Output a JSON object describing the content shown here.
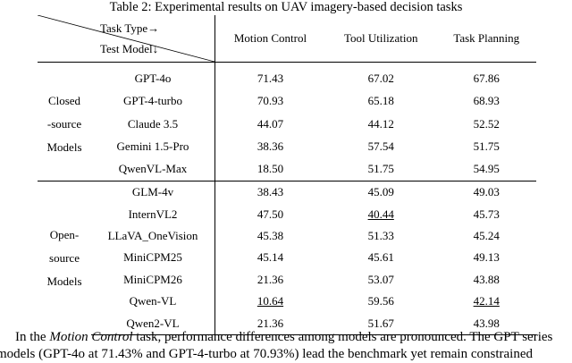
{
  "caption": "Table 2: Experimental results on UAV imagery-based decision tasks",
  "header": {
    "task_type": "Task Type→",
    "test_model": "Test Model↓",
    "columns": [
      "Motion Control",
      "Tool Utilization",
      "Task Planning"
    ]
  },
  "groups": [
    {
      "label_lines": [
        "Closed",
        "-source",
        "Models"
      ],
      "rows": [
        {
          "model": "GPT-4o",
          "motion": "71.43",
          "tool": "67.02",
          "plan": "67.86"
        },
        {
          "model": "GPT-4-turbo",
          "motion": "70.93",
          "tool": "65.18",
          "plan": "68.93"
        },
        {
          "model": "Claude 3.5",
          "motion": "44.07",
          "tool": "44.12",
          "plan": "52.52"
        },
        {
          "model": "Gemini 1.5-Pro",
          "motion": "38.36",
          "tool": "57.54",
          "plan": "51.75"
        },
        {
          "model": "QwenVL-Max",
          "motion": "18.50",
          "tool": "51.75",
          "plan": "54.95"
        }
      ]
    },
    {
      "label_lines": [
        "Open-",
        "source",
        "Models"
      ],
      "rows": [
        {
          "model": "GLM-4v",
          "motion": "38.43",
          "tool": "45.09",
          "plan": "49.03"
        },
        {
          "model": "InternVL2",
          "motion": "47.50",
          "tool": "40.44",
          "plan": "45.73"
        },
        {
          "model": "LLaVA_OneVision",
          "motion": "45.38",
          "tool": "51.33",
          "plan": "45.24"
        },
        {
          "model": "MiniCPM25",
          "motion": "45.14",
          "tool": "45.61",
          "plan": "49.13"
        },
        {
          "model": "MiniCPM26",
          "motion": "21.36",
          "tool": "53.07",
          "plan": "43.88"
        },
        {
          "model": "Qwen-VL",
          "motion": "10.64",
          "tool": "59.56",
          "plan": "42.14"
        },
        {
          "model": "Qwen2-VL",
          "motion": "21.36",
          "tool": "51.67",
          "plan": "43.98"
        }
      ]
    }
  ],
  "body": {
    "line1_pre": "In the ",
    "line1_em": "Motion Control",
    "line1_post": " task, performance differences among models are pronounced. The GPT series",
    "line2": "models (GPT-4o at 71.43% and GPT-4-turbo at 70.93%) lead the benchmark yet remain constrained"
  }
}
